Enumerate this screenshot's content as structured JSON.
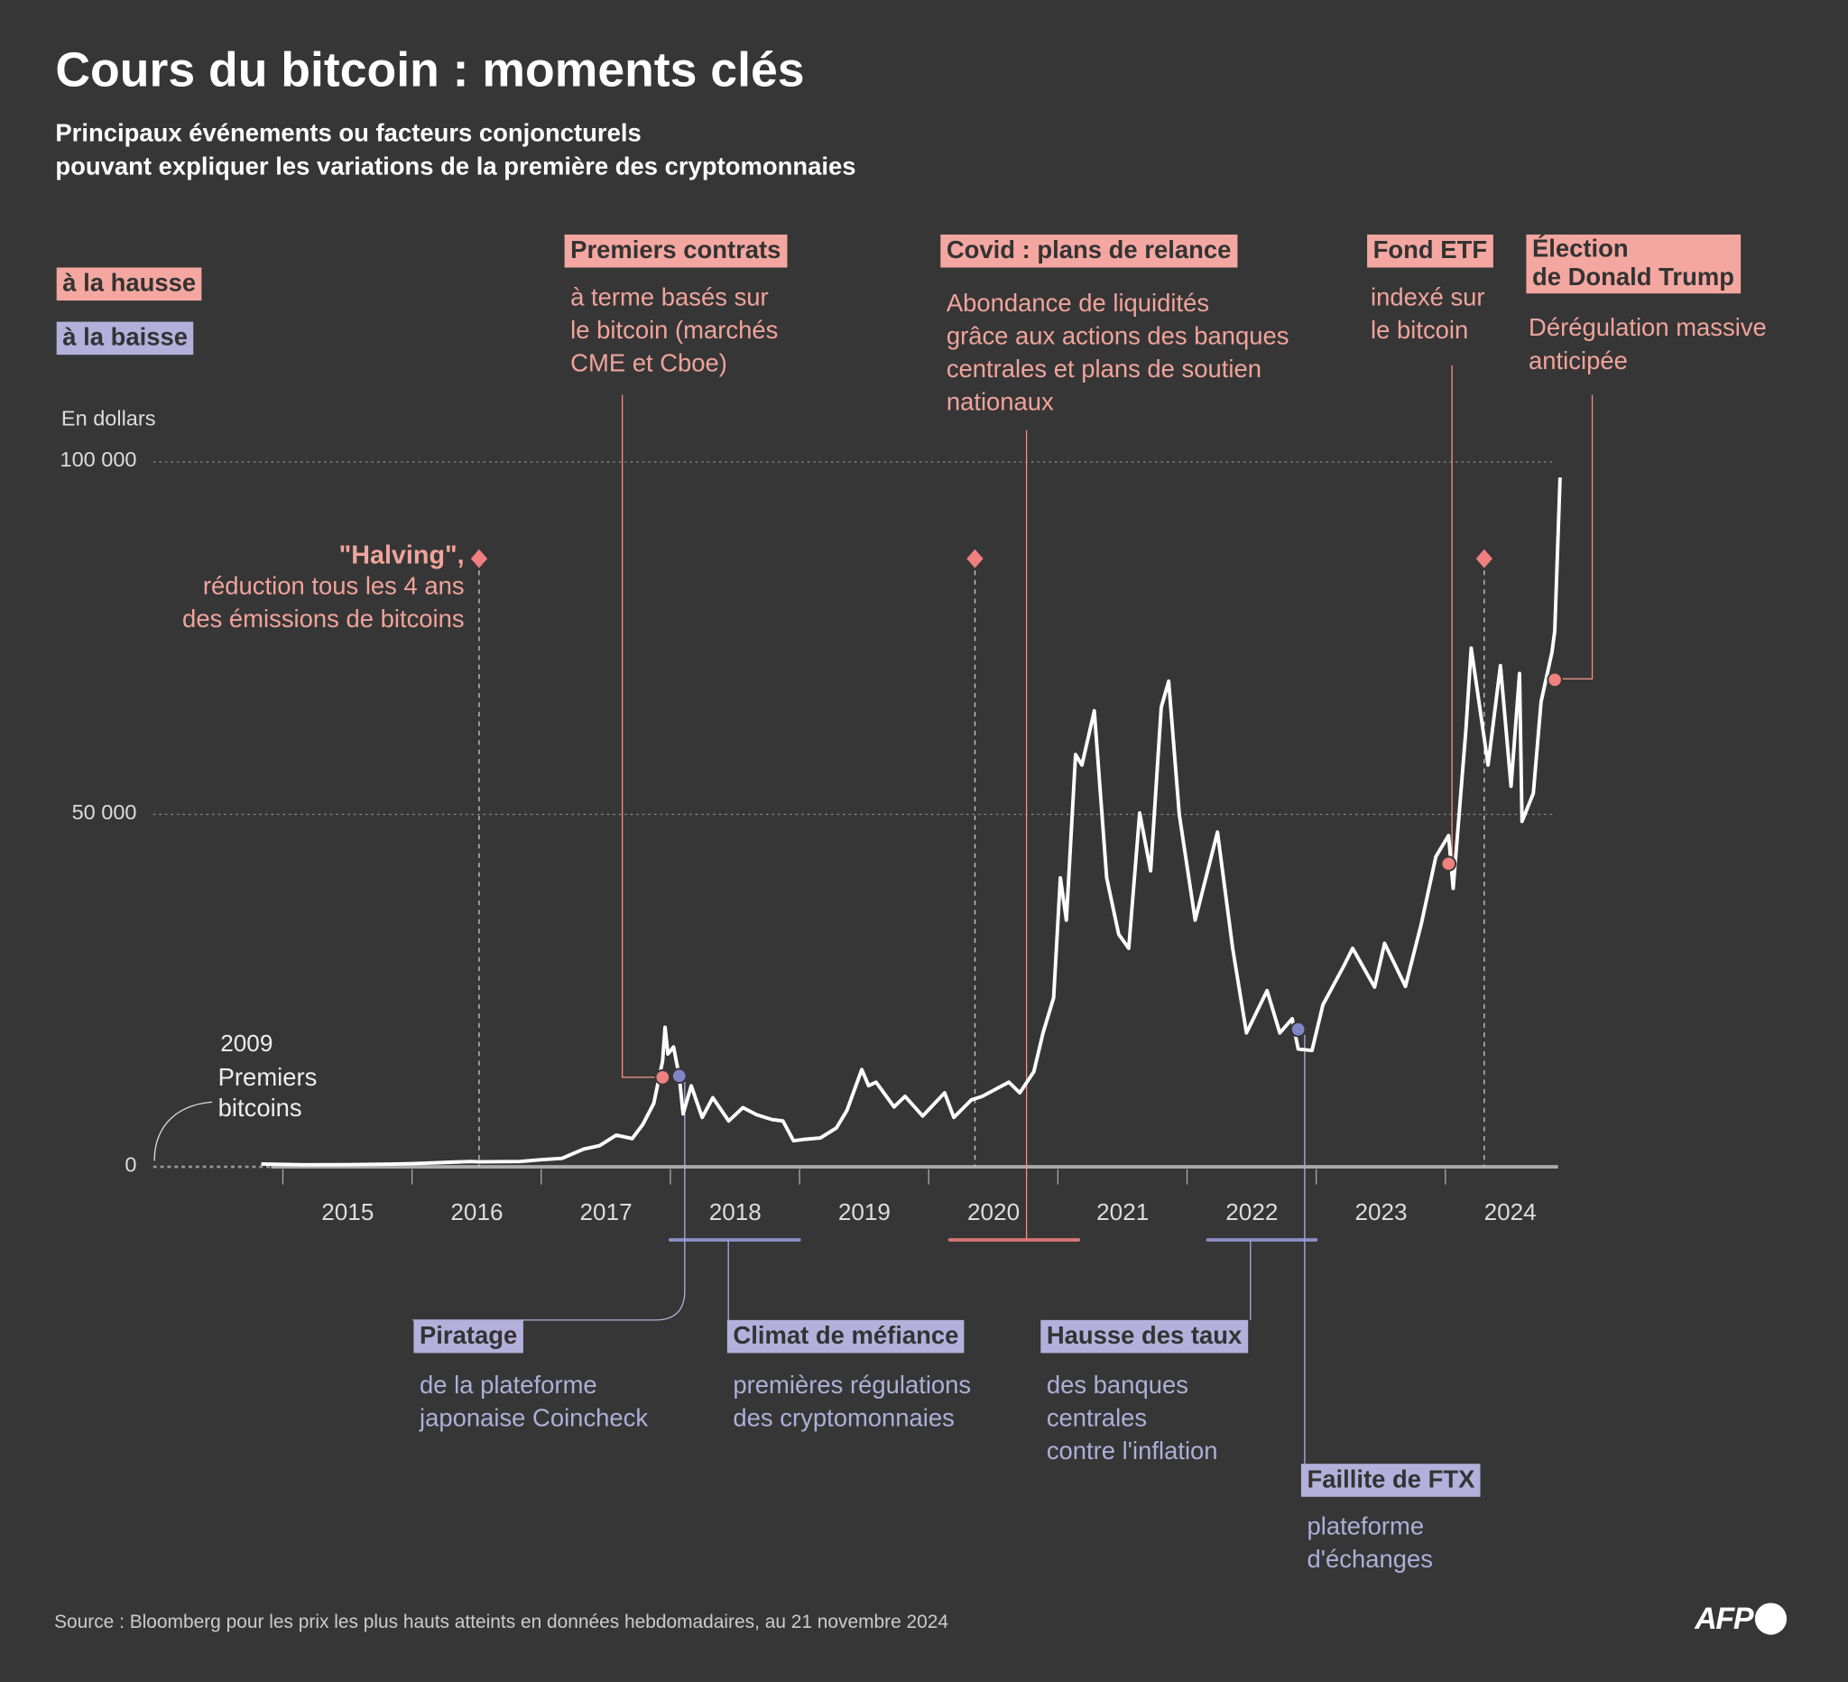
{
  "title": "Cours du bitcoin : moments clés",
  "subtitle_1": "Principaux événements ou facteurs conjoncturels",
  "subtitle_2": "pouvant expliquer les variations de la première des cryptomonnaies",
  "legend": {
    "up": "à la hausse",
    "down": "à la baisse"
  },
  "colors": {
    "background": "#363636",
    "line": "#ffffff",
    "up": "#f4a7a0",
    "down": "#b3b0dc",
    "up_dot": "#f08080",
    "down_dot": "#7f86c8"
  },
  "events": {
    "contrats": {
      "label": "Premiers contrats",
      "l1": "à terme  basés sur",
      "l2": "le bitcoin (marchés",
      "l3": "CME et Cboe)"
    },
    "covid": {
      "label": "Covid : plans de relance",
      "l1": "Abondance de liquidités",
      "l2": "grâce aux actions des banques",
      "l3": "centrales et plans de soutien",
      "l4": "nationaux"
    },
    "etf": {
      "label": "Fond ETF",
      "l1": "indexé sur",
      "l2": "le bitcoin"
    },
    "trump": {
      "label1": "Élection",
      "label2": "de Donald Trump",
      "l1": "Dérégulation massive",
      "l2": "anticipée"
    },
    "halving": {
      "label": "\"Halving\",",
      "l1": "réduction tous les 4 ans",
      "l2": "des émissions de bitcoins"
    },
    "origin": {
      "year": "2009",
      "l1": "Premiers",
      "l2": "bitcoins"
    },
    "piratage": {
      "label": "Piratage",
      "l1": "de la plateforme",
      "l2": "japonaise Coincheck"
    },
    "mefiance": {
      "label": "Climat de méfiance",
      "l1": "premières régulations",
      "l2": "des cryptomonnaies"
    },
    "taux": {
      "label": "Hausse des taux",
      "l1": "des banques",
      "l2": "centrales",
      "l3": "contre l'inflation"
    },
    "ftx": {
      "label": "Faillite de FTX",
      "l1": "plateforme",
      "l2": "d'échanges"
    }
  },
  "source": "Source : Bloomberg pour les prix les plus hauts atteints en données hebdomadaires, au 21 novembre 2024",
  "logo": "AFP",
  "chart_data": {
    "type": "line",
    "ylabel": "En dollars",
    "ylim": [
      0,
      100000
    ],
    "yticks": [
      {
        "v": 0,
        "label": "0"
      },
      {
        "v": 50000,
        "label": "50 000"
      },
      {
        "v": 100000,
        "label": "100 000"
      }
    ],
    "xticks": [
      "2015",
      "2016",
      "2017",
      "2018",
      "2019",
      "2020",
      "2021",
      "2022",
      "2023",
      "2024"
    ],
    "grid": "dotted horizontal at 50 000 and 100 000",
    "series": [
      {
        "points": [
          [
            "2014-11-01",
            400
          ],
          [
            "2015-03-01",
            280
          ],
          [
            "2015-07-01",
            300
          ],
          [
            "2015-11-01",
            380
          ],
          [
            "2016-01-01",
            450
          ],
          [
            "2016-06-15",
            750
          ],
          [
            "2016-07-09",
            700
          ],
          [
            "2016-11-01",
            750
          ],
          [
            "2017-01-01",
            1000
          ],
          [
            "2017-03-01",
            1200
          ],
          [
            "2017-05-01",
            2500
          ],
          [
            "2017-06-15",
            3000
          ],
          [
            "2017-08-01",
            4500
          ],
          [
            "2017-09-15",
            4000
          ],
          [
            "2017-10-15",
            6000
          ],
          [
            "2017-11-15",
            9000
          ],
          [
            "2017-12-10",
            15000
          ],
          [
            "2017-12-17",
            19800
          ],
          [
            "2017-12-25",
            16000
          ],
          [
            "2018-01-10",
            17000
          ],
          [
            "2018-01-26",
            12900
          ],
          [
            "2018-02-06",
            7500
          ],
          [
            "2018-03-01",
            11500
          ],
          [
            "2018-04-01",
            7000
          ],
          [
            "2018-05-01",
            9800
          ],
          [
            "2018-06-15",
            6500
          ],
          [
            "2018-07-25",
            8400
          ],
          [
            "2018-09-01",
            7400
          ],
          [
            "2018-10-15",
            6700
          ],
          [
            "2018-11-15",
            6500
          ],
          [
            "2018-12-15",
            3700
          ],
          [
            "2019-01-15",
            3900
          ],
          [
            "2019-03-01",
            4100
          ],
          [
            "2019-04-15",
            5500
          ],
          [
            "2019-05-15",
            8000
          ],
          [
            "2019-06-26",
            13800
          ],
          [
            "2019-07-15",
            11500
          ],
          [
            "2019-08-05",
            12000
          ],
          [
            "2019-09-25",
            8500
          ],
          [
            "2019-10-26",
            10000
          ],
          [
            "2019-12-15",
            7200
          ],
          [
            "2020-02-15",
            10500
          ],
          [
            "2020-03-12",
            7000
          ],
          [
            "2020-05-01",
            9500
          ],
          [
            "2020-06-01",
            10000
          ],
          [
            "2020-08-15",
            12000
          ],
          [
            "2020-09-15",
            10500
          ],
          [
            "2020-10-25",
            13500
          ],
          [
            "2020-11-20",
            19000
          ],
          [
            "2020-12-20",
            24000
          ],
          [
            "2021-01-08",
            41000
          ],
          [
            "2021-01-25",
            35000
          ],
          [
            "2021-02-20",
            58500
          ],
          [
            "2021-03-10",
            57000
          ],
          [
            "2021-04-14",
            64700
          ],
          [
            "2021-05-19",
            41000
          ],
          [
            "2021-06-22",
            33000
          ],
          [
            "2021-07-20",
            31000
          ],
          [
            "2021-08-20",
            50200
          ],
          [
            "2021-09-20",
            42000
          ],
          [
            "2021-10-20",
            65200
          ],
          [
            "2021-11-10",
            68900
          ],
          [
            "2021-12-10",
            50000
          ],
          [
            "2022-01-24",
            35000
          ],
          [
            "2022-03-28",
            47500
          ],
          [
            "2022-05-10",
            31000
          ],
          [
            "2022-06-18",
            19000
          ],
          [
            "2022-08-15",
            25000
          ],
          [
            "2022-09-20",
            19000
          ],
          [
            "2022-10-25",
            21000
          ],
          [
            "2022-11-11",
            16700
          ],
          [
            "2022-12-20",
            16500
          ],
          [
            "2023-01-20",
            23000
          ],
          [
            "2023-03-20",
            28500
          ],
          [
            "2023-04-14",
            31000
          ],
          [
            "2023-06-15",
            25500
          ],
          [
            "2023-07-13",
            31700
          ],
          [
            "2023-09-10",
            25600
          ],
          [
            "2023-10-25",
            34500
          ],
          [
            "2023-12-05",
            44000
          ],
          [
            "2024-01-10",
            47000
          ],
          [
            "2024-01-23",
            39500
          ],
          [
            "2024-02-28",
            62000
          ],
          [
            "2024-03-14",
            73600
          ],
          [
            "2024-05-01",
            57000
          ],
          [
            "2024-06-05",
            71100
          ],
          [
            "2024-07-05",
            54000
          ],
          [
            "2024-07-29",
            70000
          ],
          [
            "2024-08-05",
            49000
          ],
          [
            "2024-09-06",
            53000
          ],
          [
            "2024-09-28",
            66000
          ],
          [
            "2024-10-29",
            73000
          ],
          [
            "2024-11-06",
            76000
          ],
          [
            "2024-11-21",
            97800
          ]
        ]
      }
    ],
    "event_dots": [
      {
        "date": "2017-12-10",
        "value": 12700,
        "kind": "up"
      },
      {
        "date": "2018-01-26",
        "value": 12900,
        "kind": "down"
      },
      {
        "date": "2022-11-11",
        "value": 19500,
        "kind": "down"
      },
      {
        "date": "2024-01-10",
        "value": 43000,
        "kind": "up"
      },
      {
        "date": "2024-11-06",
        "value": 69100,
        "kind": "up"
      }
    ],
    "halvings": [
      "2016-07-09",
      "2020-05-11",
      "2024-04-20"
    ],
    "periods": [
      {
        "from": "2018-01-01",
        "to": "2018-12-31",
        "kind": "down"
      },
      {
        "from": "2020-03-01",
        "to": "2021-02-28",
        "kind": "up"
      },
      {
        "from": "2022-03-01",
        "to": "2022-12-31",
        "kind": "down"
      }
    ]
  }
}
